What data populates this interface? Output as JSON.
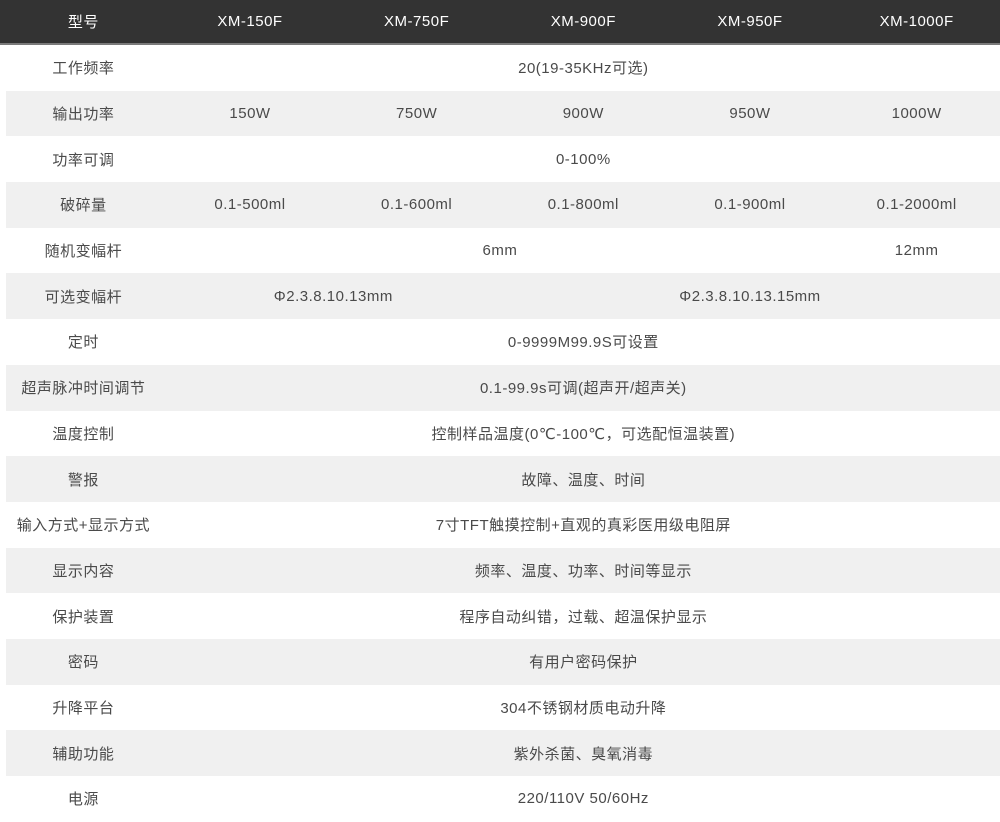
{
  "colors": {
    "header_bg": "#333333",
    "header_text": "#ffffff",
    "header_divider": "#7a7a7a",
    "alt_row_bg": "#f0f0f0",
    "body_text": "#4a4a4a"
  },
  "table": {
    "columns": [
      "型号",
      "XM-150F",
      "XM-750F",
      "XM-900F",
      "XM-950F",
      "XM-1000F"
    ],
    "rows": [
      {
        "label": "工作频率",
        "cells": [
          {
            "text": "20(19-35KHz可选)",
            "span": 5
          }
        ]
      },
      {
        "label": "输出功率",
        "cells": [
          {
            "text": "150W",
            "span": 1
          },
          {
            "text": "750W",
            "span": 1
          },
          {
            "text": "900W",
            "span": 1
          },
          {
            "text": "950W",
            "span": 1
          },
          {
            "text": "1000W",
            "span": 1
          }
        ]
      },
      {
        "label": "功率可调",
        "cells": [
          {
            "text": "0-100%",
            "span": 5
          }
        ]
      },
      {
        "label": "破碎量",
        "cells": [
          {
            "text": "0.1-500ml",
            "span": 1
          },
          {
            "text": "0.1-600ml",
            "span": 1
          },
          {
            "text": "0.1-800ml",
            "span": 1
          },
          {
            "text": "0.1-900ml",
            "span": 1
          },
          {
            "text": "0.1-2000ml",
            "span": 1
          }
        ]
      },
      {
        "label": "随机变幅杆",
        "cells": [
          {
            "text": "6mm",
            "span": 4
          },
          {
            "text": "12mm",
            "span": 1
          }
        ]
      },
      {
        "label": "可选变幅杆",
        "cells": [
          {
            "text": "Φ2.3.8.10.13mm",
            "span": 2
          },
          {
            "text": "Φ2.3.8.10.13.15mm",
            "span": 3
          }
        ]
      },
      {
        "label": "定时",
        "cells": [
          {
            "text": "0-9999M99.9S可设置",
            "span": 5
          }
        ]
      },
      {
        "label": "超声脉冲时间调节",
        "cells": [
          {
            "text": "0.1-99.9s可调(超声开/超声关)",
            "span": 5
          }
        ]
      },
      {
        "label": "温度控制",
        "cells": [
          {
            "text": "控制样品温度(0℃-100℃，可选配恒温装置)",
            "span": 5
          }
        ]
      },
      {
        "label": "警报",
        "cells": [
          {
            "text": "故障、温度、时间",
            "span": 5
          }
        ]
      },
      {
        "label": "输入方式+显示方式",
        "cells": [
          {
            "text": "7寸TFT触摸控制+直观的真彩医用级电阻屏",
            "span": 5
          }
        ]
      },
      {
        "label": "显示内容",
        "cells": [
          {
            "text": "频率、温度、功率、时间等显示",
            "span": 5
          }
        ]
      },
      {
        "label": "保护装置",
        "cells": [
          {
            "text": "程序自动纠错，过载、超温保护显示",
            "span": 5
          }
        ]
      },
      {
        "label": "密码",
        "cells": [
          {
            "text": "有用户密码保护",
            "span": 5
          }
        ]
      },
      {
        "label": "升降平台",
        "cells": [
          {
            "text": "304不锈钢材质电动升降",
            "span": 5
          }
        ]
      },
      {
        "label": "辅助功能",
        "cells": [
          {
            "text": "紫外杀菌、臭氧消毒",
            "span": 5
          }
        ]
      },
      {
        "label": "电源",
        "cells": [
          {
            "text": "220/110V 50/60Hz",
            "span": 5
          }
        ]
      }
    ]
  }
}
